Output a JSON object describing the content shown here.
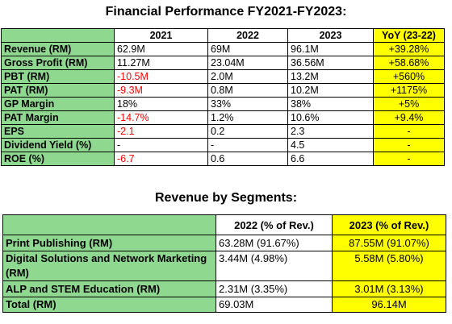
{
  "titles": {
    "financial": "Financial Performance FY2021-FY2023:",
    "segments": "Revenue by Segments:"
  },
  "financial_table": {
    "headers": [
      "",
      "2021",
      "2022",
      "2023",
      "YoY (23-22)"
    ],
    "rows": [
      {
        "label": "Revenue (RM)",
        "y2021": "62.9M",
        "y2022": "69M",
        "y2023": "96.1M",
        "yoy": "+39.28%",
        "y2021_negative": false
      },
      {
        "label": "Gross Profit (RM)",
        "y2021": "11.27M",
        "y2022": "23.04M",
        "y2023": "36.56M",
        "yoy": "+58.68%",
        "y2021_negative": false
      },
      {
        "label": "PBT (RM)",
        "y2021": "-10.5M",
        "y2022": "2.0M",
        "y2023": "13.2M",
        "yoy": "+560%",
        "y2021_negative": true
      },
      {
        "label": "PAT (RM)",
        "y2021": "-9.3M",
        "y2022": "0.8M",
        "y2023": "10.2M",
        "yoy": "+1175%",
        "y2021_negative": true
      },
      {
        "label": "GP Margin",
        "y2021": "18%",
        "y2022": "33%",
        "y2023": "38%",
        "yoy": "+5%",
        "y2021_negative": false
      },
      {
        "label": "PAT Margin",
        "y2021": "-14.7%",
        "y2022": "1.2%",
        "y2023": "10.6%",
        "yoy": "+9.4%",
        "y2021_negative": true
      },
      {
        "label": "EPS",
        "y2021": "-2.1",
        "y2022": "0.2",
        "y2023": "2.3",
        "yoy": "-",
        "y2021_negative": true
      },
      {
        "label": "Dividend Yield (%)",
        "y2021": "-",
        "y2022": "-",
        "y2023": "4.5",
        "yoy": "-",
        "y2021_negative": false
      },
      {
        "label": "ROE (%)",
        "y2021": "-6.7",
        "y2022": "0.6",
        "y2023": "6.6",
        "yoy": "-",
        "y2021_negative": true
      }
    ]
  },
  "segment_table": {
    "headers": [
      "",
      "2022 (% of Rev.)",
      "2023 (% of Rev.)"
    ],
    "rows": [
      {
        "label": "Print Publishing (RM)",
        "y2022": "63.28M (91.67%)",
        "y2023": "87.55M (91.07%)"
      },
      {
        "label": "Digital Solutions and Network Marketing (RM)",
        "y2022": "3.44M (4.98%)",
        "y2023": "5.58M (5.80%)"
      },
      {
        "label": "ALP and STEM Education (RM)",
        "y2022": "2.31M (3.35%)",
        "y2023": "3.01M (3.13%)"
      },
      {
        "label": "Total (RM)",
        "y2022": "69.03M",
        "y2023": "96.14M"
      }
    ]
  },
  "colors": {
    "label_green": "#8fd88f",
    "highlight_yellow": "#ffff00",
    "negative_red": "#ff0000"
  }
}
